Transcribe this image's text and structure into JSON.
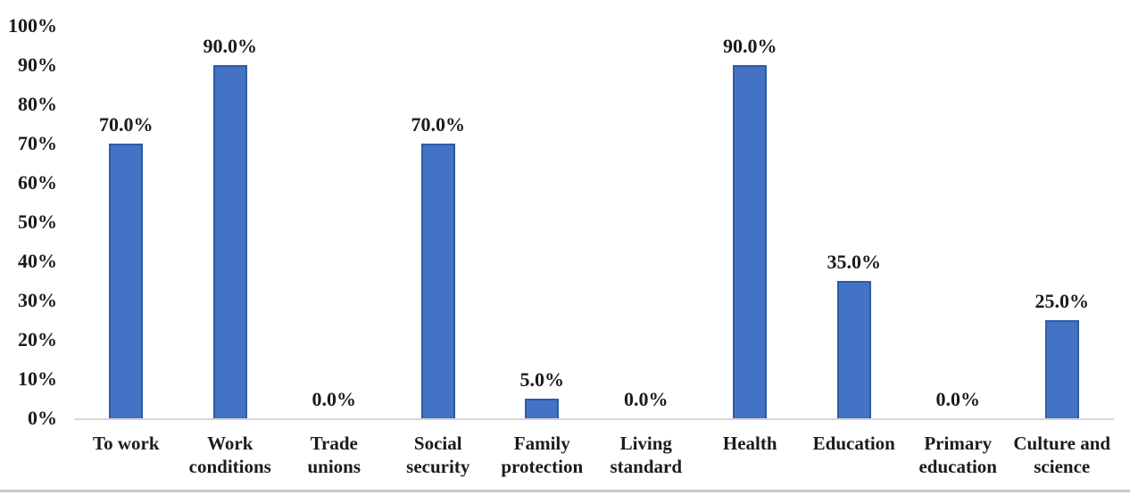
{
  "chart_data": {
    "type": "bar",
    "title": "",
    "xlabel": "",
    "ylabel": "",
    "categories": [
      "To work",
      "Work conditions",
      "Trade unions",
      "Social security",
      "Family protection",
      "Living standard",
      "Health",
      "Education",
      "Primary education",
      "Culture and science"
    ],
    "category_tick_labels": [
      "To work",
      "Work\nconditions",
      "Trade\nunions",
      "Social\nsecurity",
      "Family\nprotection",
      "Living\nstandard",
      "Health",
      "Education",
      "Primary\neducation",
      "Culture and\nscience"
    ],
    "values": [
      70,
      90,
      0,
      70,
      5,
      0,
      90,
      35,
      0,
      25
    ],
    "value_labels": [
      "70.0%",
      "90.0%",
      "0.0%",
      "70.0%",
      "5.0%",
      "0.0%",
      "90.0%",
      "35.0%",
      "0.0%",
      "25.0%"
    ],
    "ylim": [
      0,
      100
    ],
    "ytick_step": 10,
    "ytick_labels": [
      "0%",
      "10%",
      "20%",
      "30%",
      "40%",
      "50%",
      "60%",
      "70%",
      "80%",
      "90%",
      "100%"
    ],
    "grid": false,
    "legend": false,
    "colors": {
      "bar_fill": "#4472C4",
      "bar_border": "#2E5CA6",
      "axis_line": "#D6D6D6",
      "divider": "#C9C9C9",
      "text": "#1B1B1B",
      "background": "#FFFFFF"
    }
  }
}
